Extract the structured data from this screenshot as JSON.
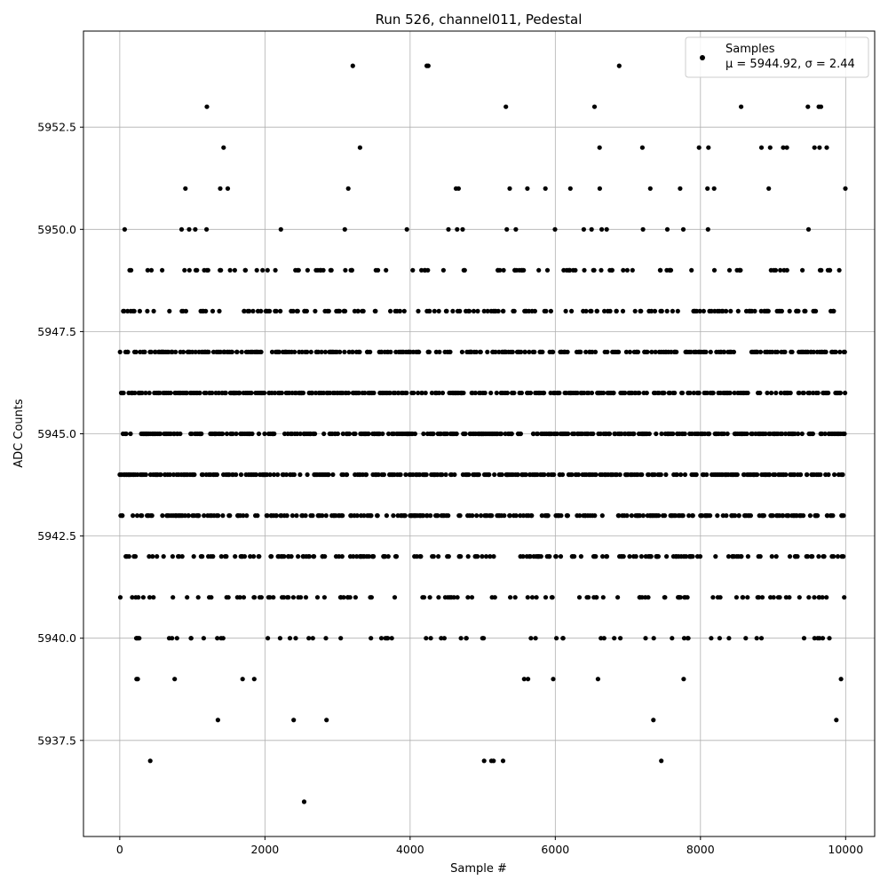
{
  "chart_data": {
    "type": "scatter",
    "title": "Run 526, channel011, Pedestal",
    "xlabel": "Sample #",
    "ylabel": "ADC Counts",
    "xlim": [
      -500,
      10400
    ],
    "ylim": [
      5935.15,
      5954.85
    ],
    "x_ticks": [
      0,
      2000,
      4000,
      6000,
      8000,
      10000
    ],
    "x_tick_labels": [
      "0",
      "2000",
      "4000",
      "6000",
      "8000",
      "10000"
    ],
    "y_ticks": [
      5937.5,
      5940.0,
      5942.5,
      5945.0,
      5947.5,
      5950.0,
      5952.5
    ],
    "y_tick_labels": [
      "5937.5",
      "5940.0",
      "5942.5",
      "5945.0",
      "5947.5",
      "5950.0",
      "5952.5"
    ],
    "grid": true,
    "legend_position": "top-right",
    "series": [
      {
        "name": "Samples",
        "stats_label": "μ = 5944.92, σ = 2.44",
        "color": "#000000",
        "n_samples": 10000,
        "mean": 5944.92,
        "std": 2.44,
        "outliers": [
          {
            "x": 3210,
            "y": 5954
          },
          {
            "x": 4230,
            "y": 5954
          },
          {
            "x": 4250,
            "y": 5954
          },
          {
            "x": 6880,
            "y": 5954
          },
          {
            "x": 1200,
            "y": 5953
          },
          {
            "x": 5320,
            "y": 5953
          },
          {
            "x": 6540,
            "y": 5953
          },
          {
            "x": 8560,
            "y": 5953
          },
          {
            "x": 9480,
            "y": 5953
          },
          {
            "x": 9630,
            "y": 5953
          },
          {
            "x": 9660,
            "y": 5953
          },
          {
            "x": 1430,
            "y": 5952
          },
          {
            "x": 3310,
            "y": 5952
          },
          {
            "x": 6610,
            "y": 5952
          },
          {
            "x": 7200,
            "y": 5952
          },
          {
            "x": 7980,
            "y": 5952
          },
          {
            "x": 8110,
            "y": 5952
          },
          {
            "x": 8840,
            "y": 5952
          },
          {
            "x": 8960,
            "y": 5952
          },
          {
            "x": 9140,
            "y": 5952
          },
          {
            "x": 9190,
            "y": 5952
          },
          {
            "x": 9570,
            "y": 5952
          },
          {
            "x": 9640,
            "y": 5952
          },
          {
            "x": 9740,
            "y": 5952
          },
          {
            "x": 420,
            "y": 5937
          },
          {
            "x": 5020,
            "y": 5937
          },
          {
            "x": 5120,
            "y": 5937
          },
          {
            "x": 5150,
            "y": 5937
          },
          {
            "x": 5280,
            "y": 5937
          },
          {
            "x": 7460,
            "y": 5937
          },
          {
            "x": 2540,
            "y": 5936
          }
        ]
      }
    ]
  }
}
